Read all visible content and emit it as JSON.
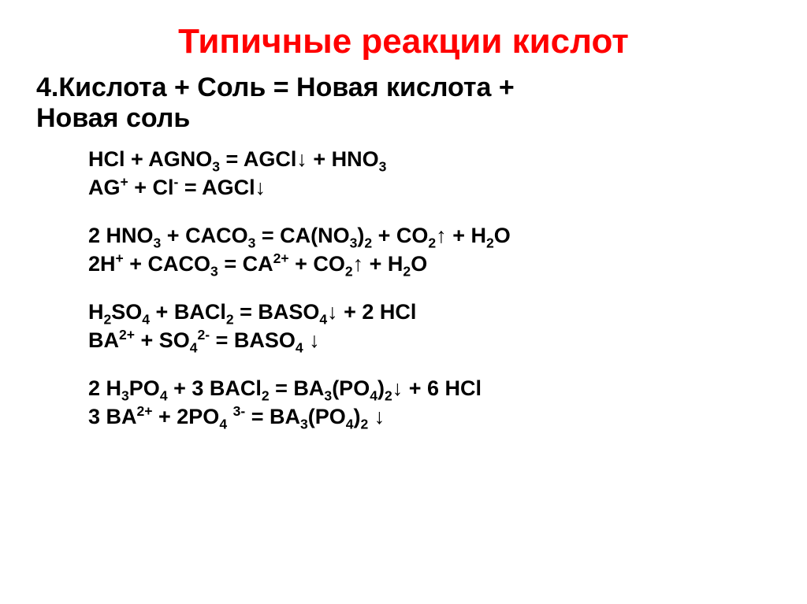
{
  "title": {
    "text": "Типичные реакции кислот",
    "color": "#ff0000",
    "fontsize": 44
  },
  "subtitle": {
    "lines": [
      "4.Кислота + Соль = Новая кислота +",
      "Новая соль"
    ],
    "color": "#000000",
    "fontsize": 34
  },
  "equations": {
    "color": "#000000",
    "fontsize": 27,
    "groups": [
      {
        "lines": [
          "HCl + AGNO<sub>3</sub> = AGCl↓ + HNO<sub>3</sub>",
          "AG<sup>+</sup> + Cl<sup>-</sup> = AGCl↓"
        ]
      },
      {
        "lines": [
          "2 HNO<sub>3</sub> + CACO<sub>3</sub> = CA(NO<sub>3</sub>)<sub>2</sub> + CO<sub>2</sub>↑ + H<sub>2</sub>O",
          "2H<sup>+</sup> + CACO<sub>3</sub> = CA<sup>2+</sup> + CO<sub>2</sub>↑ + H<sub>2</sub>O"
        ]
      },
      {
        "lines": [
          "H<sub>2</sub>SO<sub>4</sub> + BACl<sub>2</sub> = BASO<sub>4</sub>↓ + 2 HCl",
          "BA<sup>2+</sup> + SO<sub>4</sub><sup>2-</sup> = BASO<sub>4</sub> ↓"
        ]
      },
      {
        "lines": [
          "2 H<sub>3</sub>PO<sub>4</sub> + 3 BACl<sub>2</sub> = BA<sub>3</sub>(PO<sub>4</sub>)<sub>2</sub>↓ + 6 HCl",
          "3 BA<sup>2+</sup> + 2PO<sub>4</sub> <sup>3-</sup> = BA<sub>3</sub>(PO<sub>4</sub>)<sub>2</sub> ↓"
        ]
      }
    ]
  }
}
